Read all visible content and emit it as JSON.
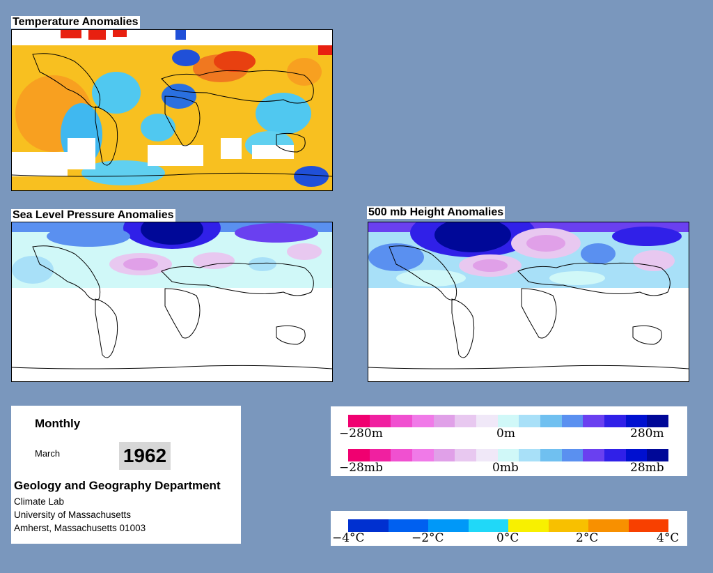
{
  "panels": {
    "temperature": {
      "title": "Temperature Anomalies"
    },
    "slp": {
      "title": "Sea Level Pressure Anomalies"
    },
    "height": {
      "title": "500 mb Height Anomalies"
    }
  },
  "info": {
    "period": "Monthly",
    "month": "March",
    "year": "1962",
    "department": "Geology and Geography Department",
    "lab": "Climate Lab",
    "university": "University of Massachusetts",
    "address": "Amherst, Massachusetts 01003"
  },
  "legends": {
    "height": {
      "colors": [
        "#f00070",
        "#f020a0",
        "#f050d0",
        "#f07ae8",
        "#e0a0e8",
        "#e8c8f0",
        "#f0e8f8",
        "#d0f8f8",
        "#a8e0f8",
        "#70c0f0",
        "#5a90f0",
        "#6a40f0",
        "#3020e8",
        "#0010d0",
        "#000898"
      ],
      "labels": [
        "−280m",
        "0m",
        "280m"
      ]
    },
    "slp": {
      "colors": [
        "#f00070",
        "#f020a0",
        "#f050d0",
        "#f07ae8",
        "#e0a0e8",
        "#e8c8f0",
        "#f0e8f8",
        "#d0f8f8",
        "#a8e0f8",
        "#70c0f0",
        "#5a90f0",
        "#6a40f0",
        "#3020e8",
        "#0010d0",
        "#000898"
      ],
      "labels": [
        "−28mb",
        "0mb",
        "28mb"
      ]
    },
    "temp": {
      "colors": [
        "#0030d0",
        "#0060f0",
        "#0098f8",
        "#20d8f8",
        "#f8f000",
        "#f8c000",
        "#f89000",
        "#f84000"
      ],
      "labels": [
        "−4°C",
        "−2°C",
        "0°C",
        "2°C",
        "4°C"
      ]
    }
  }
}
